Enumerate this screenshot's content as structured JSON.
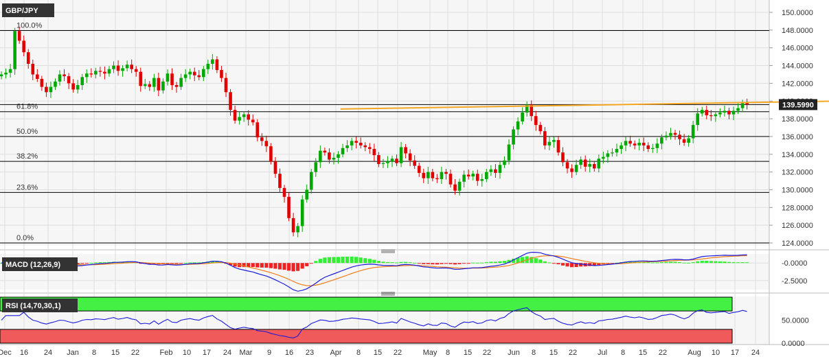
{
  "chart_data": [
    {
      "type": "candlestick",
      "title": "GBP/JPY",
      "ylim": [
        124,
        150
      ],
      "y_ticks": [
        "124.0000",
        "126.0000",
        "128.0000",
        "130.0000",
        "132.0000",
        "134.0000",
        "136.0000",
        "138.0000",
        "140.0000",
        "142.0000",
        "144.0000",
        "146.0000",
        "148.0000",
        "150.0000"
      ],
      "x_ticks": [
        "Dec",
        "16",
        "24",
        "Jan",
        "8",
        "15",
        "22",
        "Feb",
        "10",
        "17",
        "24",
        "Mar",
        "9",
        "16",
        "23",
        "Apr",
        "8",
        "15",
        "22",
        "May",
        "8",
        "15",
        "22",
        "Jun",
        "8",
        "15",
        "22",
        "Jul",
        "8",
        "15",
        "22",
        "Aug",
        "10",
        "17",
        "24"
      ],
      "last_price": "139.5990",
      "fib_levels": [
        {
          "label": "100.0%",
          "value": 147.95
        },
        {
          "label": "61.8%",
          "value": 138.8
        },
        {
          "label": "50.0%",
          "value": 136.0
        },
        {
          "label": "38.2%",
          "value": 133.2
        },
        {
          "label": "23.6%",
          "value": 129.7
        },
        {
          "label": "0.0%",
          "value": 124.0
        }
      ],
      "current_level_line": 139.6,
      "resistance_line": {
        "from": [
          75.5,
          139.1
        ],
        "to": [
          224,
          140.3
        ]
      },
      "support_line": {
        "from": [
          206.5,
          134.7
        ],
        "to": [
          219,
          139.8
        ]
      },
      "closes": [
        143.0,
        143.2,
        143.6,
        147.9,
        146.8,
        145.5,
        144.2,
        143.0,
        142.5,
        141.6,
        141.0,
        141.6,
        142.2,
        143.0,
        142.8,
        142.0,
        141.3,
        141.8,
        142.7,
        143.1,
        143.0,
        143.4,
        143.3,
        143.1,
        143.6,
        144.0,
        143.4,
        143.7,
        144.1,
        143.6,
        143.3,
        141.7,
        141.9,
        141.6,
        142.6,
        141.2,
        142.2,
        143.1,
        141.8,
        141.6,
        142.6,
        143.0,
        143.3,
        142.9,
        142.7,
        143.6,
        144.2,
        144.7,
        143.5,
        142.6,
        141.0,
        139.0,
        137.8,
        138.2,
        138.5,
        137.9,
        137.6,
        135.9,
        135.5,
        134.9,
        133.2,
        131.8,
        130.2,
        129.2,
        126.8,
        125.2,
        125.9,
        128.9,
        130.0,
        132.0,
        133.1,
        134.4,
        134.2,
        133.4,
        133.6,
        134.0,
        134.7,
        135.0,
        135.5,
        135.3,
        135.0,
        134.8,
        134.6,
        133.9,
        132.9,
        133.0,
        133.2,
        133.5,
        133.0,
        134.8,
        134.1,
        133.3,
        132.7,
        131.9,
        131.3,
        132.0,
        131.3,
        131.2,
        132.0,
        131.8,
        130.6,
        129.9,
        130.9,
        131.7,
        131.5,
        131.8,
        131.0,
        131.2,
        132.0,
        132.3,
        131.9,
        132.8,
        133.3,
        135.1,
        136.8,
        137.7,
        138.7,
        139.6,
        138.3,
        137.3,
        136.6,
        135.0,
        135.4,
        135.6,
        134.2,
        133.1,
        132.4,
        132.0,
        132.8,
        133.4,
        132.6,
        132.9,
        132.4,
        133.5,
        133.7,
        134.1,
        134.2,
        134.6,
        135.0,
        135.5,
        135.2,
        135.0,
        135.3,
        135.0,
        134.6,
        134.7,
        135.2,
        135.9,
        136.1,
        136.4,
        136.2,
        135.7,
        135.3,
        135.8,
        137.3,
        138.6,
        139.0,
        138.4,
        138.3,
        138.5,
        138.7,
        138.9,
        138.5,
        138.9,
        139.2,
        139.8,
        139.6
      ]
    },
    {
      "type": "line",
      "title": "MACD (12,26,9)",
      "ylim": [
        -3.6,
        1.1
      ],
      "y_ticks": [
        "-0.0000",
        "-2.5000"
      ]
    },
    {
      "type": "line",
      "title": "RSI (14,70,30,1)",
      "ylim": [
        0,
        100
      ],
      "y_ticks": [
        "50.0000",
        "0.0000"
      ]
    }
  ],
  "colors": {
    "up": "#00a800",
    "down": "#e00000",
    "fib": "#000000",
    "resistance": "#f5a623",
    "support": "#e020e0",
    "macd": "#1a1adb",
    "signal": "#f07f1a",
    "hist_up": "#33ee33",
    "hist_down": "#ee2222",
    "rsi": "#1a1adb",
    "ob": "#44f044",
    "os": "#f05a5a",
    "title_bg": "#333333",
    "grid": "#dddddd",
    "panel_bg": "#f4f4f4"
  }
}
